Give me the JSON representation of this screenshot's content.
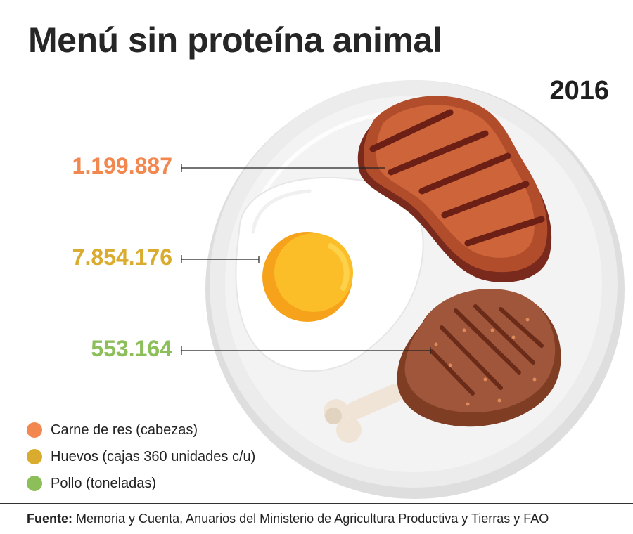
{
  "title": "Menú sin proteína animal",
  "year": "2016",
  "colors": {
    "beef": "#f2874f",
    "eggs": "#d9ab2e",
    "chicken": "#8cbf5a"
  },
  "chart_data": {
    "type": "table",
    "title": "Menú sin proteína animal",
    "year": "2016",
    "categories": [
      "Carne de res (cabezas)",
      "Huevos (cajas 360 unidades c/u)",
      "Pollo (toneladas)"
    ],
    "values": [
      1199887,
      7854176,
      553164
    ],
    "value_labels": [
      "1.199.887",
      "7.854.176",
      "553.164"
    ],
    "legend_position": "bottom-left"
  },
  "items": [
    {
      "value": "1.199.887",
      "legend": "Carne de res (cabezas)",
      "icon": "steak-icon"
    },
    {
      "value": "7.854.176",
      "legend": "Huevos (cajas 360 unidades c/u)",
      "icon": "egg-icon"
    },
    {
      "value": "553.164",
      "legend": "Pollo (toneladas)",
      "icon": "chicken-leg-icon"
    }
  ],
  "source": {
    "label": "Fuente:",
    "text": "Memoria y Cuenta, Anuarios del Ministerio de Agricultura Productiva y Tierras y FAO"
  }
}
